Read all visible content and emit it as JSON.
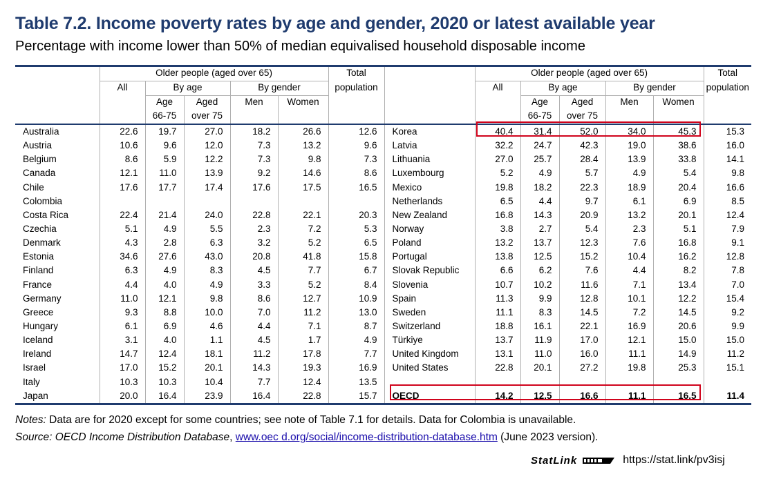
{
  "title": "Table 7.2. Income poverty rates by age and gender, 2020 or latest available year",
  "subtitle": "Percentage with income lower than 50% of median equivalised household disposable income",
  "headers": {
    "older_people": "Older people (aged over 65)",
    "total": "Total",
    "population": "population",
    "all": "All",
    "by_age": "By age",
    "by_gender": "By gender",
    "age": "Age",
    "age_range": "66-75",
    "aged": "Aged",
    "over75": "over 75",
    "men": "Men",
    "women": "Women"
  },
  "left_rows": [
    {
      "country": "Australia",
      "all": "22.6",
      "age6675": "19.7",
      "over75": "27.0",
      "men": "18.2",
      "women": "26.6",
      "total": "12.6"
    },
    {
      "country": "Austria",
      "all": "10.6",
      "age6675": "9.6",
      "over75": "12.0",
      "men": "7.3",
      "women": "13.2",
      "total": "9.6"
    },
    {
      "country": "Belgium",
      "all": "8.6",
      "age6675": "5.9",
      "over75": "12.2",
      "men": "7.3",
      "women": "9.8",
      "total": "7.3"
    },
    {
      "country": "Canada",
      "all": "12.1",
      "age6675": "11.0",
      "over75": "13.9",
      "men": "9.2",
      "women": "14.6",
      "total": "8.6"
    },
    {
      "country": "Chile",
      "all": "17.6",
      "age6675": "17.7",
      "over75": "17.4",
      "men": "17.6",
      "women": "17.5",
      "total": "16.5"
    },
    {
      "country": "Colombia",
      "all": "",
      "age6675": "",
      "over75": "",
      "men": "",
      "women": "",
      "total": ""
    },
    {
      "country": "Costa Rica",
      "all": "22.4",
      "age6675": "21.4",
      "over75": "24.0",
      "men": "22.8",
      "women": "22.1",
      "total": "20.3"
    },
    {
      "country": "Czechia",
      "all": "5.1",
      "age6675": "4.9",
      "over75": "5.5",
      "men": "2.3",
      "women": "7.2",
      "total": "5.3"
    },
    {
      "country": "Denmark",
      "all": "4.3",
      "age6675": "2.8",
      "over75": "6.3",
      "men": "3.2",
      "women": "5.2",
      "total": "6.5"
    },
    {
      "country": "Estonia",
      "all": "34.6",
      "age6675": "27.6",
      "over75": "43.0",
      "men": "20.8",
      "women": "41.8",
      "total": "15.8"
    },
    {
      "country": "Finland",
      "all": "6.3",
      "age6675": "4.9",
      "over75": "8.3",
      "men": "4.5",
      "women": "7.7",
      "total": "6.7"
    },
    {
      "country": "France",
      "all": "4.4",
      "age6675": "4.0",
      "over75": "4.9",
      "men": "3.3",
      "women": "5.2",
      "total": "8.4"
    },
    {
      "country": "Germany",
      "all": "11.0",
      "age6675": "12.1",
      "over75": "9.8",
      "men": "8.6",
      "women": "12.7",
      "total": "10.9"
    },
    {
      "country": "Greece",
      "all": "9.3",
      "age6675": "8.8",
      "over75": "10.0",
      "men": "7.0",
      "women": "11.2",
      "total": "13.0"
    },
    {
      "country": "Hungary",
      "all": "6.1",
      "age6675": "6.9",
      "over75": "4.6",
      "men": "4.4",
      "women": "7.1",
      "total": "8.7"
    },
    {
      "country": "Iceland",
      "all": "3.1",
      "age6675": "4.0",
      "over75": "1.1",
      "men": "4.5",
      "women": "1.7",
      "total": "4.9"
    },
    {
      "country": "Ireland",
      "all": "14.7",
      "age6675": "12.4",
      "over75": "18.1",
      "men": "11.2",
      "women": "17.8",
      "total": "7.7"
    },
    {
      "country": "Israel",
      "all": "17.0",
      "age6675": "15.2",
      "over75": "20.1",
      "men": "14.3",
      "women": "19.3",
      "total": "16.9"
    },
    {
      "country": "Italy",
      "all": "10.3",
      "age6675": "10.3",
      "over75": "10.4",
      "men": "7.7",
      "women": "12.4",
      "total": "13.5"
    },
    {
      "country": "Japan",
      "all": "20.0",
      "age6675": "16.4",
      "over75": "23.9",
      "men": "16.4",
      "women": "22.8",
      "total": "15.7"
    }
  ],
  "right_rows": [
    {
      "country": "Korea",
      "all": "40.4",
      "age6675": "31.4",
      "over75": "52.0",
      "men": "34.0",
      "women": "45.3",
      "total": "15.3"
    },
    {
      "country": "Latvia",
      "all": "32.2",
      "age6675": "24.7",
      "over75": "42.3",
      "men": "19.0",
      "women": "38.6",
      "total": "16.0"
    },
    {
      "country": "Lithuania",
      "all": "27.0",
      "age6675": "25.7",
      "over75": "28.4",
      "men": "13.9",
      "women": "33.8",
      "total": "14.1"
    },
    {
      "country": "Luxembourg",
      "all": "5.2",
      "age6675": "4.9",
      "over75": "5.7",
      "men": "4.9",
      "women": "5.4",
      "total": "9.8"
    },
    {
      "country": "Mexico",
      "all": "19.8",
      "age6675": "18.2",
      "over75": "22.3",
      "men": "18.9",
      "women": "20.4",
      "total": "16.6"
    },
    {
      "country": "Netherlands",
      "all": "6.5",
      "age6675": "4.4",
      "over75": "9.7",
      "men": "6.1",
      "women": "6.9",
      "total": "8.5"
    },
    {
      "country": "New Zealand",
      "all": "16.8",
      "age6675": "14.3",
      "over75": "20.9",
      "men": "13.2",
      "women": "20.1",
      "total": "12.4"
    },
    {
      "country": "Norway",
      "all": "3.8",
      "age6675": "2.7",
      "over75": "5.4",
      "men": "2.3",
      "women": "5.1",
      "total": "7.9"
    },
    {
      "country": "Poland",
      "all": "13.2",
      "age6675": "13.7",
      "over75": "12.3",
      "men": "7.6",
      "women": "16.8",
      "total": "9.1"
    },
    {
      "country": "Portugal",
      "all": "13.8",
      "age6675": "12.5",
      "over75": "15.2",
      "men": "10.4",
      "women": "16.2",
      "total": "12.8"
    },
    {
      "country": "Slovak Republic",
      "all": "6.6",
      "age6675": "6.2",
      "over75": "7.6",
      "men": "4.4",
      "women": "8.2",
      "total": "7.8"
    },
    {
      "country": "Slovenia",
      "all": "10.7",
      "age6675": "10.2",
      "over75": "11.6",
      "men": "7.1",
      "women": "13.4",
      "total": "7.0"
    },
    {
      "country": "Spain",
      "all": "11.3",
      "age6675": "9.9",
      "over75": "12.8",
      "men": "10.1",
      "women": "12.2",
      "total": "15.4"
    },
    {
      "country": "Sweden",
      "all": "11.1",
      "age6675": "8.3",
      "over75": "14.5",
      "men": "7.2",
      "women": "14.5",
      "total": "9.2"
    },
    {
      "country": "Switzerland",
      "all": "18.8",
      "age6675": "16.1",
      "over75": "22.1",
      "men": "16.9",
      "women": "20.6",
      "total": "9.9"
    },
    {
      "country": "Türkiye",
      "all": "13.7",
      "age6675": "11.9",
      "over75": "17.0",
      "men": "12.1",
      "women": "15.0",
      "total": "15.0"
    },
    {
      "country": "United Kingdom",
      "all": "13.1",
      "age6675": "11.0",
      "over75": "16.0",
      "men": "11.1",
      "women": "14.9",
      "total": "11.2"
    },
    {
      "country": "United States",
      "all": "22.8",
      "age6675": "20.1",
      "over75": "27.2",
      "men": "19.8",
      "women": "25.3",
      "total": "15.1"
    },
    {
      "country": "",
      "all": "",
      "age6675": "",
      "over75": "",
      "men": "",
      "women": "",
      "total": ""
    },
    {
      "country": "OECD",
      "all": "14.2",
      "age6675": "12.5",
      "over75": "16.6",
      "men": "11.1",
      "women": "16.5",
      "total": "11.4"
    }
  ],
  "notes": {
    "notes_label": "Notes:",
    "notes_text": " Data are for 2020 except for some countries; see note of Table 7.1 for details. Data for Colombia is unavailable.",
    "source_label": "Source: ",
    "source_italic": "OECD Income Distribution Database",
    "source_sep": ", ",
    "source_link": "www.oec d.org/social/income-distribution-database.htm",
    "source_tail": " (June 2023 version)."
  },
  "statlink": {
    "brand": "StatLink",
    "url": "https://stat.link/pv3isj"
  },
  "highlight_color": "#d0021b",
  "title_color": "#1f3b6e"
}
